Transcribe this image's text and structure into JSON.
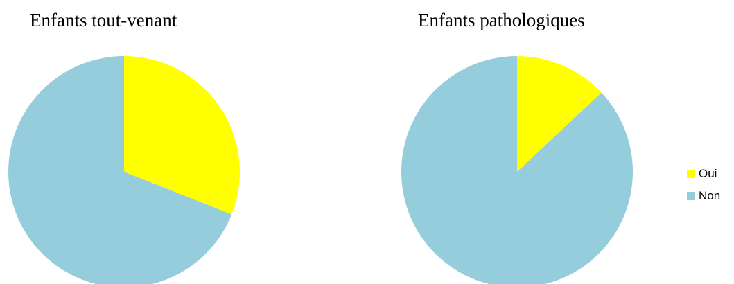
{
  "chart_data": [
    {
      "type": "pie",
      "title": "Enfants tout-venant",
      "categories": [
        "Oui",
        "Non"
      ],
      "values": [
        31,
        69
      ],
      "colors": [
        "#ffff00",
        "#95cddc"
      ]
    },
    {
      "type": "pie",
      "title": "Enfants pathologiques",
      "categories": [
        "Oui",
        "Non"
      ],
      "values": [
        13,
        87
      ],
      "colors": [
        "#ffff00",
        "#95cddc"
      ]
    }
  ],
  "legend": {
    "placement": "right",
    "items": [
      {
        "label": "Oui",
        "color": "#ffff00"
      },
      {
        "label": "Non",
        "color": "#95cddc"
      }
    ]
  }
}
